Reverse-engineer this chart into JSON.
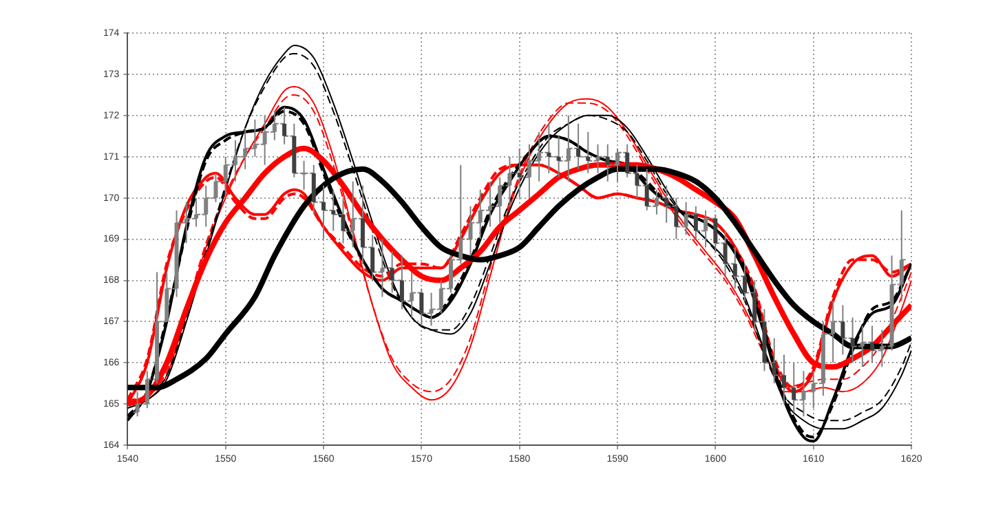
{
  "chart_data": {
    "type": "candlestick",
    "color": "#808080",
    "colors": [
      "#808080",
      "#808080",
      "#808080",
      "#808080",
      "#808080",
      "#808080",
      "#808080",
      "#808080",
      "#808080",
      "#808080",
      "#808080",
      "#808080",
      "#808080",
      "#808080",
      "#808080",
      "#404040",
      "#404040",
      "#808080",
      "#404040",
      "#404040",
      "#404040",
      "#404040",
      "#808080",
      "#404040",
      "#404040",
      "#808080",
      "#404040",
      "#404040",
      "#808080",
      "#404040",
      "#808080",
      "#808080",
      "#808080",
      "#808080",
      "#808080",
      "#808080",
      "#808080",
      "#808080",
      "#808080",
      "#404040",
      "#808080",
      "#808080",
      "#404040",
      "#404040",
      "#808080",
      "#404040",
      "#404040",
      "#808080",
      "#404040",
      "#808080",
      "#404040",
      "#404040",
      "#404040",
      "#808080",
      "#404040",
      "#404040",
      "#808080",
      "#404040",
      "#808080",
      "#404040",
      "#404040",
      "#404040",
      "#404040",
      "#404040",
      "#404040",
      "#404040",
      "#404040",
      "#404040",
      "#808080",
      "#808080",
      "#808080",
      "#808080",
      "#404040",
      "#404040",
      "#808080",
      "#404040",
      "#808080",
      "#808080",
      "#808080"
    ],
    "x": [
      1541,
      1542,
      1543,
      1544,
      1545,
      1546,
      1547,
      1548,
      1549,
      1550,
      1551,
      1552,
      1553,
      1554,
      1555,
      1556,
      1557,
      1558,
      1559,
      1560,
      1561,
      1562,
      1563,
      1564,
      1565,
      1566,
      1567,
      1568,
      1569,
      1570,
      1571,
      1572,
      1573,
      1574,
      1575,
      1576,
      1577,
      1578,
      1579,
      1580,
      1581,
      1582,
      1583,
      1584,
      1585,
      1586,
      1587,
      1588,
      1589,
      1590,
      1591,
      1592,
      1593,
      1594,
      1595,
      1596,
      1597,
      1598,
      1599,
      1600,
      1601,
      1602,
      1603,
      1604,
      1605,
      1606,
      1607,
      1608,
      1609,
      1610,
      1611,
      1612,
      1613,
      1614,
      1615,
      1616,
      1617,
      1618,
      1619
    ],
    "ohlc": [
      [
        164.8,
        165.3,
        164.7,
        165.0
      ],
      [
        165.0,
        165.8,
        164.9,
        165.6
      ],
      [
        165.6,
        168.2,
        165.5,
        167.0
      ],
      [
        167.0,
        168.2,
        167.0,
        167.8
      ],
      [
        167.8,
        169.7,
        167.6,
        169.4
      ],
      [
        169.4,
        169.9,
        168.9,
        169.5
      ],
      [
        169.5,
        170.0,
        169.3,
        169.6
      ],
      [
        169.6,
        170.3,
        169.3,
        170.0
      ],
      [
        170.0,
        170.6,
        169.9,
        170.4
      ],
      [
        170.4,
        171.0,
        170.0,
        170.8
      ],
      [
        170.8,
        171.4,
        170.4,
        171.0
      ],
      [
        171.0,
        171.7,
        170.7,
        171.2
      ],
      [
        171.2,
        171.9,
        171.0,
        171.3
      ],
      [
        171.3,
        172.0,
        170.8,
        171.6
      ],
      [
        171.6,
        172.1,
        171.4,
        171.8
      ],
      [
        171.8,
        172.2,
        171.3,
        171.5
      ],
      [
        171.5,
        171.8,
        170.5,
        170.6
      ],
      [
        170.6,
        170.9,
        170.2,
        170.6
      ],
      [
        170.6,
        170.8,
        169.6,
        169.9
      ],
      [
        169.9,
        170.3,
        169.0,
        169.7
      ],
      [
        169.7,
        170.2,
        169.2,
        169.6
      ],
      [
        169.6,
        170.0,
        168.9,
        169.2
      ],
      [
        169.2,
        170.4,
        168.8,
        169.5
      ],
      [
        169.5,
        170.3,
        168.4,
        168.8
      ],
      [
        168.8,
        169.1,
        168.0,
        168.2
      ],
      [
        168.2,
        169.0,
        167.6,
        168.3
      ],
      [
        168.3,
        168.7,
        167.7,
        168.0
      ],
      [
        168.0,
        168.6,
        167.3,
        167.5
      ],
      [
        167.5,
        168.2,
        167.1,
        167.7
      ],
      [
        167.7,
        167.8,
        166.9,
        167.2
      ],
      [
        167.2,
        167.7,
        166.9,
        167.3
      ],
      [
        167.3,
        168.0,
        167.2,
        167.8
      ],
      [
        167.8,
        168.6,
        167.7,
        168.5
      ],
      [
        168.5,
        170.8,
        168.4,
        169.0
      ],
      [
        169.0,
        169.8,
        168.6,
        169.4
      ],
      [
        169.4,
        170.2,
        169.0,
        169.7
      ],
      [
        169.7,
        170.4,
        169.3,
        169.8
      ],
      [
        169.8,
        170.5,
        169.4,
        170.3
      ],
      [
        170.3,
        171.0,
        169.8,
        170.6
      ],
      [
        170.6,
        171.2,
        170.0,
        170.5
      ],
      [
        170.5,
        171.3,
        170.0,
        170.9
      ],
      [
        170.9,
        171.6,
        170.4,
        171.1
      ],
      [
        171.1,
        171.8,
        170.6,
        171.0
      ],
      [
        171.0,
        171.5,
        170.5,
        170.9
      ],
      [
        170.9,
        172.0,
        170.4,
        171.2
      ],
      [
        171.2,
        171.8,
        170.7,
        171.0
      ],
      [
        171.0,
        171.6,
        170.6,
        170.9
      ],
      [
        170.9,
        171.3,
        170.6,
        171.0
      ],
      [
        171.0,
        171.3,
        170.4,
        170.8
      ],
      [
        170.8,
        171.2,
        170.4,
        171.1
      ],
      [
        171.1,
        171.3,
        170.5,
        170.6
      ],
      [
        170.6,
        170.8,
        170.0,
        170.3
      ],
      [
        170.3,
        170.7,
        169.7,
        169.8
      ],
      [
        169.8,
        170.2,
        169.6,
        170.0
      ],
      [
        170.0,
        170.3,
        169.4,
        169.8
      ],
      [
        169.8,
        170.0,
        169.0,
        169.3
      ],
      [
        169.3,
        169.9,
        169.1,
        169.6
      ],
      [
        169.6,
        169.8,
        169.0,
        169.2
      ],
      [
        169.2,
        169.7,
        168.8,
        169.5
      ],
      [
        169.5,
        169.6,
        168.7,
        168.9
      ],
      [
        168.9,
        169.2,
        168.1,
        168.4
      ],
      [
        168.4,
        168.8,
        167.8,
        168.1
      ],
      [
        168.1,
        168.4,
        167.5,
        167.7
      ],
      [
        167.7,
        168.0,
        166.8,
        167.0
      ],
      [
        167.0,
        167.3,
        165.8,
        166.0
      ],
      [
        166.0,
        166.6,
        165.5,
        165.7
      ],
      [
        165.7,
        166.2,
        165.0,
        165.4
      ],
      [
        165.4,
        166.0,
        164.8,
        165.1
      ],
      [
        165.1,
        165.8,
        164.7,
        165.3
      ],
      [
        165.3,
        165.8,
        164.9,
        165.5
      ],
      [
        165.5,
        167.0,
        165.2,
        166.7
      ],
      [
        166.7,
        167.5,
        166.0,
        167.0
      ],
      [
        167.0,
        167.4,
        166.2,
        166.6
      ],
      [
        166.6,
        167.1,
        166.0,
        166.4
      ],
      [
        166.4,
        166.9,
        165.9,
        166.5
      ],
      [
        166.5,
        166.9,
        166.0,
        166.3
      ],
      [
        166.3,
        166.8,
        165.9,
        166.4
      ],
      [
        166.4,
        168.6,
        166.3,
        167.9
      ],
      [
        167.9,
        169.7,
        167.5,
        168.5
      ]
    ],
    "series": [
      {
        "type": "line",
        "color": "#000000",
        "line_style": "solid",
        "x": [
          1540,
          1543,
          1545,
          1548,
          1550,
          1553,
          1555,
          1558,
          1560,
          1562,
          1564,
          1566,
          1568,
          1570,
          1572,
          1574,
          1576,
          1578,
          1580,
          1582,
          1584,
          1586,
          1588,
          1590,
          1592,
          1594,
          1596,
          1598,
          1600,
          1602,
          1604,
          1606,
          1608,
          1610,
          1612,
          1614,
          1616,
          1618,
          1620
        ],
        "values": [
          165.4,
          165.4,
          165.6,
          166.1,
          166.7,
          167.6,
          168.6,
          169.8,
          170.3,
          170.6,
          170.7,
          170.4,
          169.9,
          169.3,
          168.8,
          168.6,
          168.5,
          168.6,
          168.8,
          169.3,
          169.8,
          170.2,
          170.5,
          170.7,
          170.7,
          170.7,
          170.6,
          170.4,
          170.0,
          169.4,
          168.7,
          168.0,
          167.4,
          167.0,
          166.7,
          166.4,
          166.4,
          166.4,
          166.6
        ]
      },
      {
        "type": "line",
        "color": "#ff0000",
        "line_style": "solid",
        "x": [
          1540,
          1542,
          1544,
          1546,
          1548,
          1550,
          1552,
          1554,
          1556,
          1558,
          1560,
          1562,
          1564,
          1566,
          1568,
          1570,
          1572,
          1574,
          1576,
          1578,
          1580,
          1582,
          1584,
          1586,
          1588,
          1590,
          1592,
          1594,
          1596,
          1598,
          1600,
          1602,
          1604,
          1606,
          1608,
          1610,
          1612,
          1614,
          1616,
          1618,
          1620
        ],
        "values": [
          165.0,
          165.2,
          166.0,
          167.3,
          168.5,
          169.4,
          170.0,
          170.6,
          171.0,
          171.2,
          170.9,
          170.3,
          169.6,
          169.0,
          168.5,
          168.1,
          168.0,
          168.3,
          168.7,
          169.3,
          169.7,
          170.1,
          170.5,
          170.7,
          170.8,
          170.8,
          170.8,
          170.7,
          170.5,
          170.2,
          169.9,
          169.5,
          168.6,
          167.6,
          166.7,
          166.0,
          165.9,
          166.1,
          166.4,
          166.9,
          167.4
        ]
      },
      {
        "type": "line",
        "color": "#000000",
        "line_style": "solid",
        "x": [
          1540,
          1542,
          1544,
          1546,
          1548,
          1550,
          1552,
          1554,
          1556,
          1558,
          1560,
          1562,
          1564,
          1566,
          1568,
          1570,
          1571,
          1573,
          1575,
          1577,
          1579,
          1581,
          1583,
          1585,
          1587,
          1589,
          1591,
          1593,
          1595,
          1597,
          1599,
          1601,
          1603,
          1605,
          1607,
          1609,
          1610,
          1612,
          1614,
          1616,
          1618,
          1620
        ],
        "values": [
          164.6,
          165.3,
          167.0,
          169.3,
          171.0,
          171.5,
          171.6,
          171.7,
          172.2,
          171.9,
          170.7,
          169.5,
          168.5,
          167.8,
          167.5,
          167.2,
          167.1,
          167.5,
          168.4,
          169.6,
          170.4,
          171.1,
          171.5,
          171.4,
          171.1,
          170.9,
          170.8,
          170.3,
          169.9,
          169.6,
          169.4,
          169.0,
          168.2,
          166.7,
          165.1,
          164.2,
          164.1,
          165.1,
          166.4,
          167.2,
          167.4,
          168.4
        ]
      },
      {
        "type": "line",
        "color": "#000000",
        "line_style": "dashed",
        "x": [
          1540,
          1542,
          1544,
          1546,
          1548,
          1550,
          1552,
          1554,
          1556,
          1558,
          1560,
          1562,
          1564,
          1566,
          1568,
          1570,
          1571,
          1573,
          1575,
          1577,
          1579,
          1581,
          1583,
          1585,
          1587,
          1589,
          1591,
          1593,
          1595,
          1597,
          1599,
          1601,
          1603,
          1605,
          1607,
          1609,
          1610,
          1612,
          1614,
          1616,
          1618,
          1620
        ],
        "values": [
          164.7,
          165.3,
          167.1,
          169.2,
          170.9,
          171.4,
          171.6,
          171.7,
          172.1,
          171.8,
          170.6,
          169.4,
          168.5,
          167.8,
          167.5,
          167.2,
          167.1,
          167.6,
          168.5,
          169.7,
          170.5,
          171.1,
          171.5,
          171.4,
          171.1,
          170.9,
          170.8,
          170.4,
          169.9,
          169.6,
          169.4,
          169.0,
          168.3,
          166.8,
          165.2,
          164.3,
          164.2,
          165.0,
          166.3,
          167.3,
          167.5,
          168.4
        ]
      },
      {
        "type": "line",
        "color": "#ff0000",
        "line_style": "solid",
        "x": [
          1540,
          1542,
          1544,
          1546,
          1548,
          1549,
          1551,
          1553,
          1554,
          1556,
          1557,
          1558,
          1560,
          1562,
          1564,
          1566,
          1568,
          1570,
          1572,
          1574,
          1576,
          1578,
          1580,
          1582,
          1584,
          1586,
          1588,
          1590,
          1592,
          1594,
          1596,
          1598,
          1600,
          1602,
          1604,
          1606,
          1608,
          1610,
          1612,
          1614,
          1616,
          1618,
          1620
        ],
        "values": [
          165.0,
          166.0,
          168.3,
          169.8,
          170.5,
          170.6,
          170.0,
          169.6,
          169.6,
          170.1,
          170.2,
          170.1,
          169.3,
          168.7,
          168.2,
          168.0,
          168.3,
          168.3,
          168.3,
          169.0,
          169.9,
          170.6,
          170.8,
          170.8,
          170.6,
          170.3,
          170.0,
          170.1,
          170.0,
          169.9,
          169.7,
          169.6,
          169.4,
          168.8,
          167.7,
          166.0,
          165.3,
          165.8,
          167.5,
          168.4,
          168.6,
          168.1,
          168.4
        ]
      },
      {
        "type": "line",
        "color": "#ff0000",
        "line_style": "dashed",
        "x": [
          1540,
          1542,
          1544,
          1546,
          1548,
          1549,
          1551,
          1553,
          1554,
          1556,
          1557,
          1558,
          1560,
          1562,
          1564,
          1566,
          1568,
          1570,
          1572,
          1574,
          1576,
          1578,
          1580,
          1582,
          1584,
          1586,
          1588,
          1590,
          1592,
          1594,
          1596,
          1598,
          1600,
          1602,
          1604,
          1606,
          1608,
          1610,
          1612,
          1614,
          1616,
          1618,
          1620
        ],
        "values": [
          165.1,
          166.1,
          168.4,
          169.7,
          170.4,
          170.5,
          169.9,
          169.5,
          169.5,
          170.0,
          170.1,
          170.0,
          169.3,
          168.8,
          168.3,
          168.1,
          168.4,
          168.4,
          168.3,
          169.1,
          170.0,
          170.7,
          170.8,
          170.8,
          170.6,
          170.3,
          170.0,
          170.1,
          170.0,
          169.9,
          169.7,
          169.6,
          169.4,
          168.8,
          167.8,
          166.1,
          165.4,
          165.9,
          167.6,
          168.5,
          168.5,
          168.2,
          168.4
        ]
      },
      {
        "type": "line",
        "color": "#000000",
        "line_style": "solid",
        "x": [
          1540,
          1542,
          1544,
          1546,
          1548,
          1550,
          1552,
          1554,
          1556,
          1557,
          1559,
          1561,
          1563,
          1565,
          1567,
          1569,
          1571,
          1573,
          1575,
          1577,
          1579,
          1581,
          1583,
          1585,
          1587,
          1589,
          1591,
          1593,
          1595,
          1597,
          1599,
          1601,
          1603,
          1605,
          1607,
          1609,
          1611,
          1613,
          1615,
          1617,
          1619,
          1620
        ],
        "values": [
          164.9,
          165.1,
          165.6,
          167.0,
          168.6,
          170.2,
          171.7,
          172.8,
          173.5,
          173.7,
          173.4,
          172.3,
          170.9,
          169.4,
          168.0,
          167.1,
          166.8,
          166.7,
          167.2,
          168.4,
          169.7,
          170.7,
          171.4,
          171.8,
          172.0,
          172.0,
          171.7,
          171.0,
          170.2,
          169.5,
          169.0,
          168.5,
          167.6,
          166.3,
          165.1,
          164.6,
          164.4,
          164.4,
          164.6,
          164.9,
          165.7,
          166.3
        ]
      },
      {
        "type": "line",
        "color": "#000000",
        "line_style": "dashed",
        "x": [
          1540,
          1542,
          1544,
          1546,
          1548,
          1550,
          1552,
          1554,
          1556,
          1557,
          1559,
          1561,
          1563,
          1565,
          1567,
          1569,
          1571,
          1573,
          1575,
          1577,
          1579,
          1581,
          1583,
          1585,
          1587,
          1589,
          1591,
          1593,
          1595,
          1597,
          1599,
          1601,
          1603,
          1605,
          1607,
          1609,
          1611,
          1613,
          1615,
          1617,
          1619,
          1620
        ],
        "values": [
          165.0,
          165.2,
          165.7,
          167.1,
          168.7,
          170.3,
          171.7,
          172.7,
          173.4,
          173.5,
          173.2,
          172.1,
          170.7,
          169.2,
          167.9,
          167.1,
          166.8,
          166.8,
          167.4,
          168.6,
          169.9,
          170.8,
          171.5,
          171.8,
          172.0,
          171.9,
          171.6,
          170.9,
          170.1,
          169.5,
          169.0,
          168.4,
          167.5,
          166.2,
          165.2,
          164.8,
          164.6,
          164.6,
          164.8,
          165.1,
          165.9,
          166.5
        ]
      },
      {
        "type": "line",
        "color": "#ff0000",
        "line_style": "solid",
        "x": [
          1540,
          1542,
          1544,
          1546,
          1548,
          1550,
          1552,
          1554,
          1556,
          1557,
          1559,
          1561,
          1563,
          1565,
          1567,
          1569,
          1571,
          1573,
          1575,
          1577,
          1579,
          1581,
          1583,
          1585,
          1587,
          1589,
          1591,
          1593,
          1595,
          1597,
          1599,
          1601,
          1603,
          1605,
          1607,
          1609,
          1611,
          1613,
          1615,
          1617,
          1619,
          1620
        ],
        "values": [
          165.0,
          165.1,
          165.7,
          167.2,
          168.8,
          170.0,
          171.0,
          171.8,
          172.6,
          172.7,
          172.3,
          171.0,
          169.2,
          167.4,
          166.0,
          165.4,
          165.1,
          165.4,
          166.4,
          168.1,
          169.8,
          171.0,
          171.8,
          172.3,
          172.4,
          172.2,
          171.6,
          170.8,
          170.0,
          169.3,
          168.7,
          168.1,
          167.3,
          166.3,
          165.3,
          165.3,
          165.4,
          165.3,
          165.5,
          166.1,
          167.3,
          168.0
        ]
      },
      {
        "type": "line",
        "color": "#ff0000",
        "line_style": "dashed",
        "x": [
          1540,
          1542,
          1544,
          1546,
          1548,
          1550,
          1552,
          1554,
          1556,
          1557,
          1559,
          1561,
          1563,
          1565,
          1567,
          1569,
          1571,
          1573,
          1575,
          1577,
          1579,
          1581,
          1583,
          1585,
          1587,
          1589,
          1591,
          1593,
          1595,
          1597,
          1599,
          1601,
          1603,
          1605,
          1607,
          1609,
          1611,
          1613,
          1615,
          1617,
          1619,
          1620
        ],
        "values": [
          165.1,
          165.2,
          165.8,
          167.3,
          168.9,
          170.1,
          171.0,
          171.7,
          172.4,
          172.5,
          172.1,
          170.8,
          169.1,
          167.4,
          166.1,
          165.5,
          165.3,
          165.6,
          166.6,
          168.3,
          169.9,
          171.1,
          171.9,
          172.3,
          172.3,
          172.1,
          171.5,
          170.7,
          169.9,
          169.2,
          168.6,
          168.0,
          167.2,
          166.2,
          165.4,
          165.5,
          165.6,
          165.6,
          165.9,
          166.5,
          167.6,
          168.2
        ]
      }
    ],
    "xlim": [
      1540,
      1620
    ],
    "xticks": [
      1540,
      1550,
      1560,
      1570,
      1580,
      1590,
      1600,
      1610,
      1620
    ],
    "ylim": [
      164,
      174
    ],
    "yticks": [
      164,
      165,
      166,
      167,
      168,
      169,
      170,
      171,
      172,
      173,
      174
    ],
    "grid": true,
    "legend": false
  }
}
